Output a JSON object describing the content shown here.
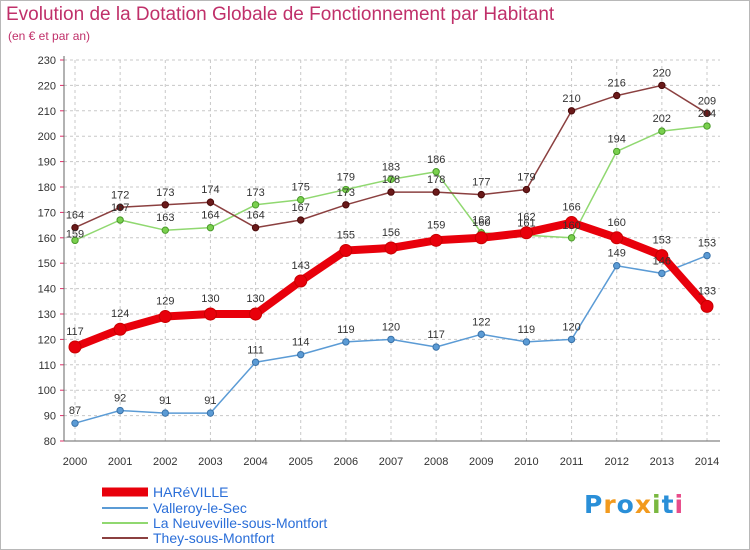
{
  "header": {
    "title": "Evolution de la Dotation Globale de Fonctionnement par Habitant",
    "subtitle": "(en € et par an)"
  },
  "logo": {
    "text": "Proxiti",
    "letters": [
      "P",
      "r",
      "o",
      "x",
      "i",
      "t",
      "i"
    ],
    "colors": [
      "#2a8fd8",
      "#f29a1e",
      "#2a8fd8",
      "#f29a1e",
      "#7ab840",
      "#2a8fd8",
      "#e84c8a"
    ]
  },
  "chart_data": {
    "type": "line",
    "title": "Evolution de la Dotation Globale de Fonctionnement par Habitant",
    "subtitle": "(en € et par an)",
    "xlabel": "",
    "ylabel": "",
    "x": [
      "2000",
      "2001",
      "2002",
      "2003",
      "2004",
      "2005",
      "2006",
      "2007",
      "2008",
      "2009",
      "2010",
      "2011",
      "2012",
      "2013",
      "2014"
    ],
    "ylim": [
      80,
      230
    ],
    "yticks": [
      "80",
      "90",
      "100",
      "110",
      "120",
      "130",
      "140",
      "150",
      "160",
      "170",
      "180",
      "190",
      "200",
      "210",
      "220",
      "230"
    ],
    "grid": true,
    "legend_position": "bottom-left",
    "series": [
      {
        "name": "HARéVILLE",
        "color": "#e8000b",
        "markerFill": "#e8000b",
        "markerStroke": "#c80000",
        "emphasis": true,
        "values": [
          117,
          124,
          129,
          130,
          130,
          143,
          155,
          156,
          159,
          160,
          162,
          166,
          160,
          153,
          133
        ]
      },
      {
        "name": "Valleroy-le-Sec",
        "color": "#5b9bd5",
        "markerFill": "#5b9bd5",
        "markerStroke": "#3a72a8",
        "emphasis": false,
        "values": [
          87,
          92,
          91,
          91,
          111,
          114,
          119,
          120,
          117,
          122,
          119,
          120,
          149,
          146,
          153
        ]
      },
      {
        "name": "La Neuveville-sous-Montfort",
        "color": "#90d870",
        "markerFill": "#7ad04e",
        "markerStroke": "#4a9a2a",
        "emphasis": false,
        "values": [
          159,
          167,
          163,
          164,
          173,
          175,
          179,
          183,
          186,
          162,
          161,
          160,
          194,
          202,
          204
        ]
      },
      {
        "name": "They-sous-Montfort",
        "color": "#8b4040",
        "markerFill": "#6a1a1a",
        "markerStroke": "#4a0a0a",
        "emphasis": false,
        "values": [
          164,
          172,
          173,
          174,
          164,
          167,
          173,
          178,
          178,
          177,
          179,
          210,
          216,
          220,
          209
        ]
      }
    ]
  }
}
